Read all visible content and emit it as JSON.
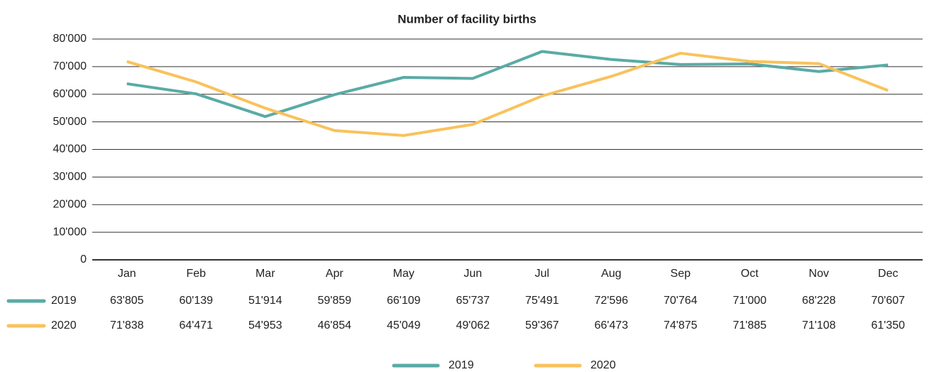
{
  "chart_data": {
    "type": "line",
    "title": "Number of facility births",
    "categories": [
      "Jan",
      "Feb",
      "Mar",
      "Apr",
      "May",
      "Jun",
      "Jul",
      "Aug",
      "Sep",
      "Oct",
      "Nov",
      "Dec"
    ],
    "series": [
      {
        "name": "2019",
        "color": "#5aaba5",
        "values": [
          63805,
          60139,
          51914,
          59859,
          66109,
          65737,
          75491,
          72596,
          70764,
          71000,
          68228,
          70607
        ],
        "value_labels": [
          "63'805",
          "60'139",
          "51'914",
          "59'859",
          "66'109",
          "65'737",
          "75'491",
          "72'596",
          "70'764",
          "71'000",
          "68'228",
          "70'607"
        ]
      },
      {
        "name": "2020",
        "color": "#f9c25c",
        "values": [
          71838,
          64471,
          54953,
          46854,
          45049,
          49062,
          59367,
          66473,
          74875,
          71885,
          71108,
          61350
        ],
        "value_labels": [
          "71'838",
          "64'471",
          "54'953",
          "46'854",
          "45'049",
          "49'062",
          "59'367",
          "66'473",
          "74'875",
          "71'885",
          "71'108",
          "61'350"
        ]
      }
    ],
    "ylim": [
      0,
      80000
    ],
    "yticks": [
      0,
      {
        "value": 10000,
        "label": "10'000"
      },
      {
        "value": 20000,
        "label": "20'000"
      },
      {
        "value": 30000,
        "label": "30'000"
      },
      {
        "value": 40000,
        "label": "40'000"
      },
      {
        "value": 50000,
        "label": "50'000"
      },
      {
        "value": 60000,
        "label": "60'000"
      },
      {
        "value": 70000,
        "label": "70'000"
      },
      {
        "value": 80000,
        "label": "80'000"
      }
    ],
    "grid": true,
    "legend": "bottom"
  }
}
